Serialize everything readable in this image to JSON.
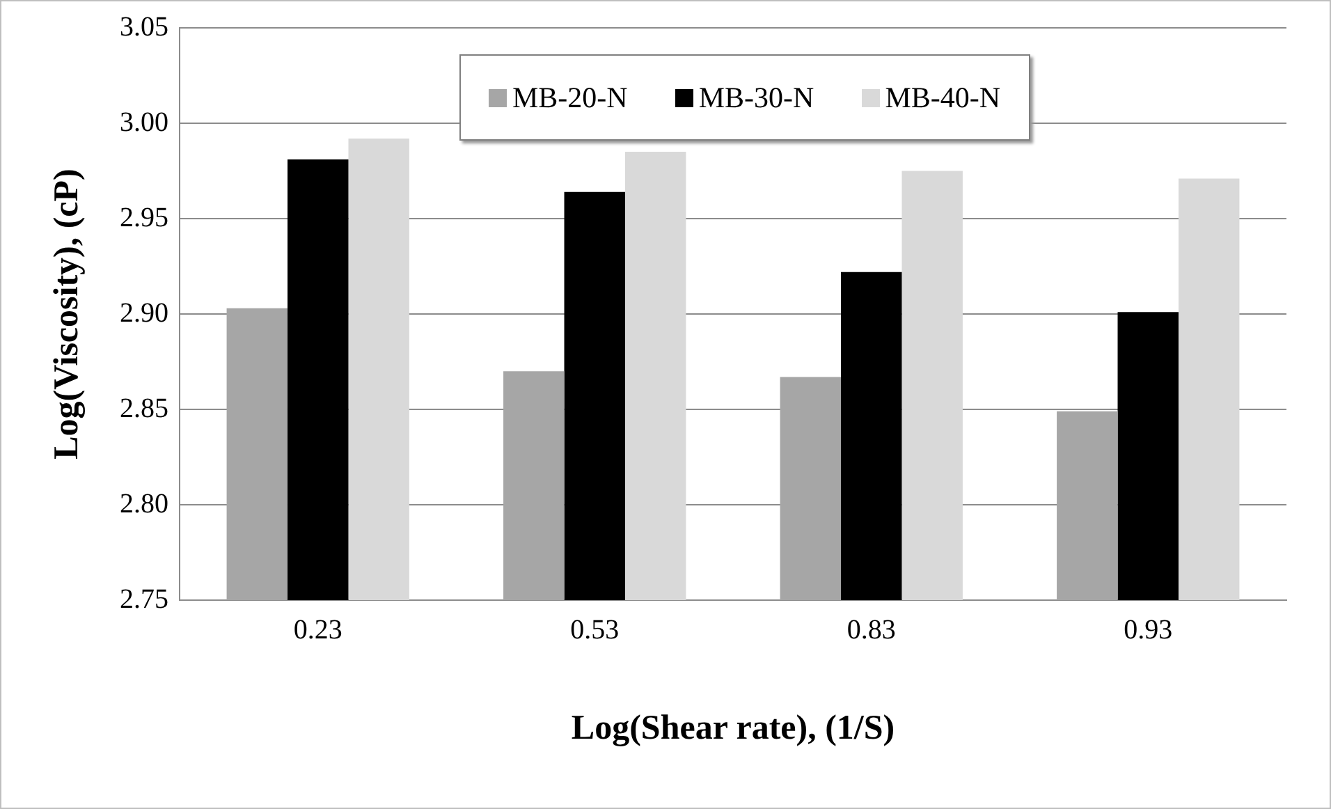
{
  "chart_data": {
    "type": "bar",
    "xlabel": "Log(Shear rate), (1/S)",
    "ylabel": "Log(Viscosity), (cP)",
    "categories": [
      "0.23",
      "0.53",
      "0.83",
      "0.93"
    ],
    "series": [
      {
        "name": "MB-20-N",
        "color": "#a6a6a6",
        "values": [
          2.903,
          2.87,
          2.867,
          2.849
        ]
      },
      {
        "name": "MB-30-N",
        "color": "#000000",
        "values": [
          2.981,
          2.964,
          2.922,
          2.901
        ]
      },
      {
        "name": "MB-40-N",
        "color": "#d9d9d9",
        "values": [
          2.992,
          2.985,
          2.975,
          2.971
        ]
      }
    ],
    "ylim": [
      2.75,
      3.05
    ],
    "yticks": [
      {
        "value": 2.75,
        "label": "2.75"
      },
      {
        "value": 2.8,
        "label": "2.80"
      },
      {
        "value": 2.85,
        "label": "2.85"
      },
      {
        "value": 2.9,
        "label": "2.90"
      },
      {
        "value": 2.95,
        "label": "2.95"
      },
      {
        "value": 3.0,
        "label": "3.00"
      },
      {
        "value": 3.05,
        "label": "3.05"
      }
    ],
    "grid": "y",
    "legend": "top"
  }
}
